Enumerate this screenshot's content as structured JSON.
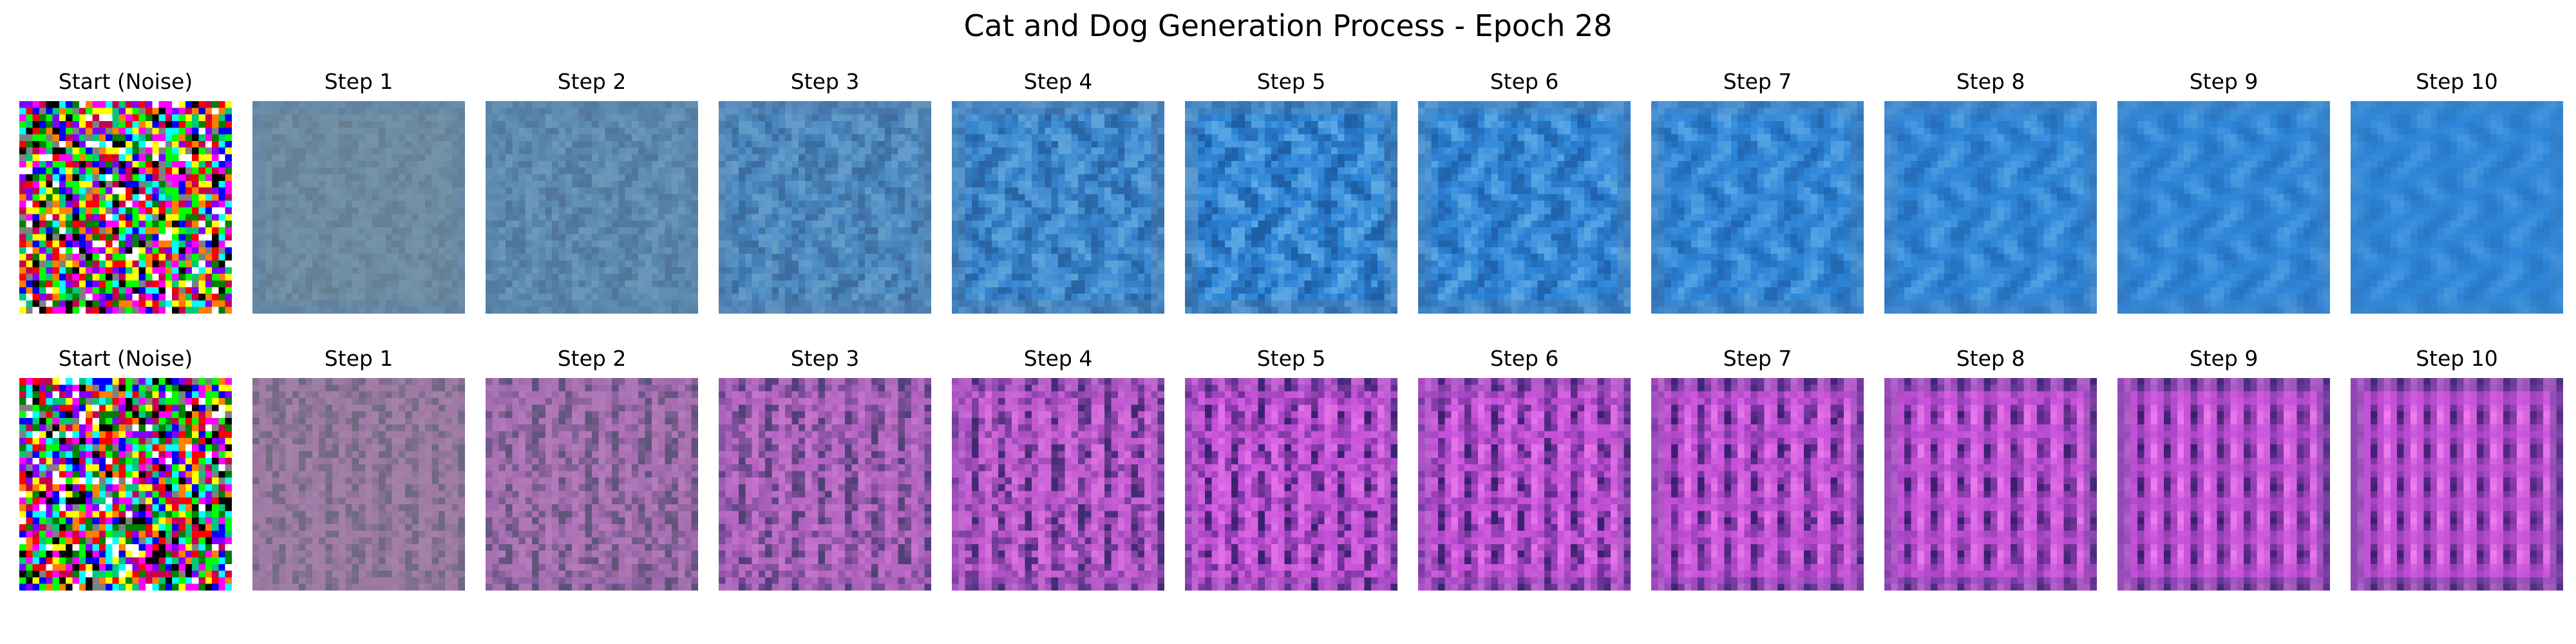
{
  "figure": {
    "title": "Cat and Dog Generation Process - Epoch 28"
  },
  "rows": [
    {
      "name": "cat-row",
      "palette": "blue",
      "panels": [
        {
          "label": "Start (Noise)",
          "step": 0
        },
        {
          "label": "Step 1",
          "step": 1
        },
        {
          "label": "Step 2",
          "step": 2
        },
        {
          "label": "Step 3",
          "step": 3
        },
        {
          "label": "Step 4",
          "step": 4
        },
        {
          "label": "Step 5",
          "step": 5
        },
        {
          "label": "Step 6",
          "step": 6
        },
        {
          "label": "Step 7",
          "step": 7
        },
        {
          "label": "Step 8",
          "step": 8
        },
        {
          "label": "Step 9",
          "step": 9
        },
        {
          "label": "Step 10",
          "step": 10
        }
      ]
    },
    {
      "name": "dog-row",
      "palette": "magenta",
      "panels": [
        {
          "label": "Start (Noise)",
          "step": 0
        },
        {
          "label": "Step 1",
          "step": 1
        },
        {
          "label": "Step 2",
          "step": 2
        },
        {
          "label": "Step 3",
          "step": 3
        },
        {
          "label": "Step 4",
          "step": 4
        },
        {
          "label": "Step 5",
          "step": 5
        },
        {
          "label": "Step 6",
          "step": 6
        },
        {
          "label": "Step 7",
          "step": 7
        },
        {
          "label": "Step 8",
          "step": 8
        },
        {
          "label": "Step 9",
          "step": 9
        },
        {
          "label": "Step 10",
          "step": 10
        }
      ]
    }
  ],
  "colors": {
    "blue_base": "#2f86d8",
    "blue_dark": "#1e5fa6",
    "blue_light": "#6fb6ea",
    "magenta_base": "#c24fd6",
    "magenta_dark": "#3a1f6e",
    "magenta_light": "#f07ff0",
    "noise_gray": "#8a8f8a"
  }
}
